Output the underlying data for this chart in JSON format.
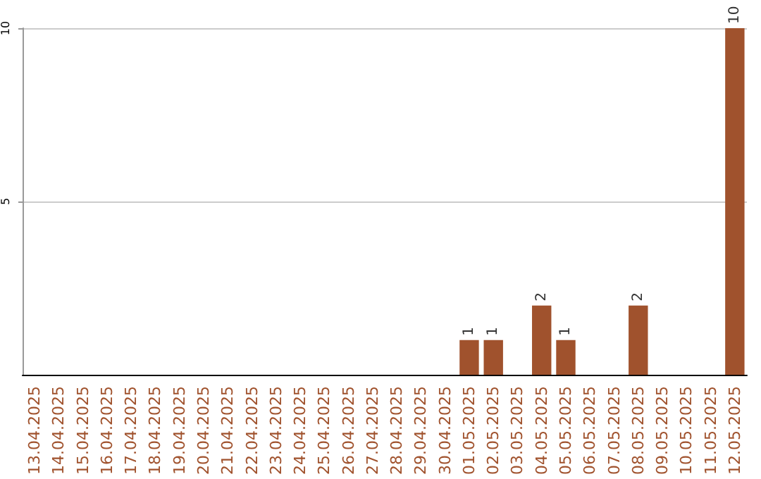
{
  "chart_data": {
    "type": "bar",
    "categories": [
      "13.04.2025",
      "14.04.2025",
      "15.04.2025",
      "16.04.2025",
      "17.04.2025",
      "18.04.2025",
      "19.04.2025",
      "20.04.2025",
      "21.04.2025",
      "22.04.2025",
      "23.04.2025",
      "24.04.2025",
      "25.04.2025",
      "26.04.2025",
      "27.04.2025",
      "28.04.2025",
      "29.04.2025",
      "30.04.2025",
      "01.05.2025",
      "02.05.2025",
      "03.05.2025",
      "04.05.2025",
      "05.05.2025",
      "06.05.2025",
      "07.05.2025",
      "08.05.2025",
      "09.05.2025",
      "10.05.2025",
      "11.05.2025",
      "12.05.2025"
    ],
    "values": [
      0,
      0,
      0,
      0,
      0,
      0,
      0,
      0,
      0,
      0,
      0,
      0,
      0,
      0,
      0,
      0,
      0,
      0,
      1,
      1,
      0,
      2,
      1,
      0,
      0,
      2,
      0,
      0,
      0,
      10
    ],
    "value_labels": [
      null,
      null,
      null,
      null,
      null,
      null,
      null,
      null,
      null,
      null,
      null,
      null,
      null,
      null,
      null,
      null,
      null,
      null,
      "1",
      "1",
      null,
      "2",
      "1",
      null,
      null,
      "2",
      null,
      null,
      null,
      "10"
    ],
    "color": "#a0522d",
    "ylim": [
      0,
      10
    ],
    "yticks": [
      5,
      10
    ],
    "grid": "y"
  }
}
